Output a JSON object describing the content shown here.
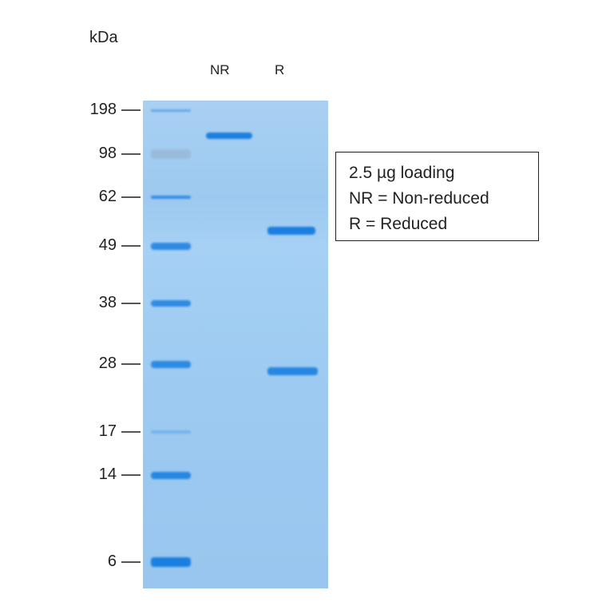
{
  "unit_label": "kDa",
  "lanes": [
    "NR",
    "R"
  ],
  "markers": [
    "198",
    "98",
    "62",
    "49",
    "38",
    "28",
    "17",
    "14",
    "6"
  ],
  "legend": [
    "2.5 µg loading",
    "NR = Non-reduced",
    "R = Reduced"
  ],
  "colors": {
    "gel": "#9dc9f0",
    "band": "#1a7fe0"
  }
}
